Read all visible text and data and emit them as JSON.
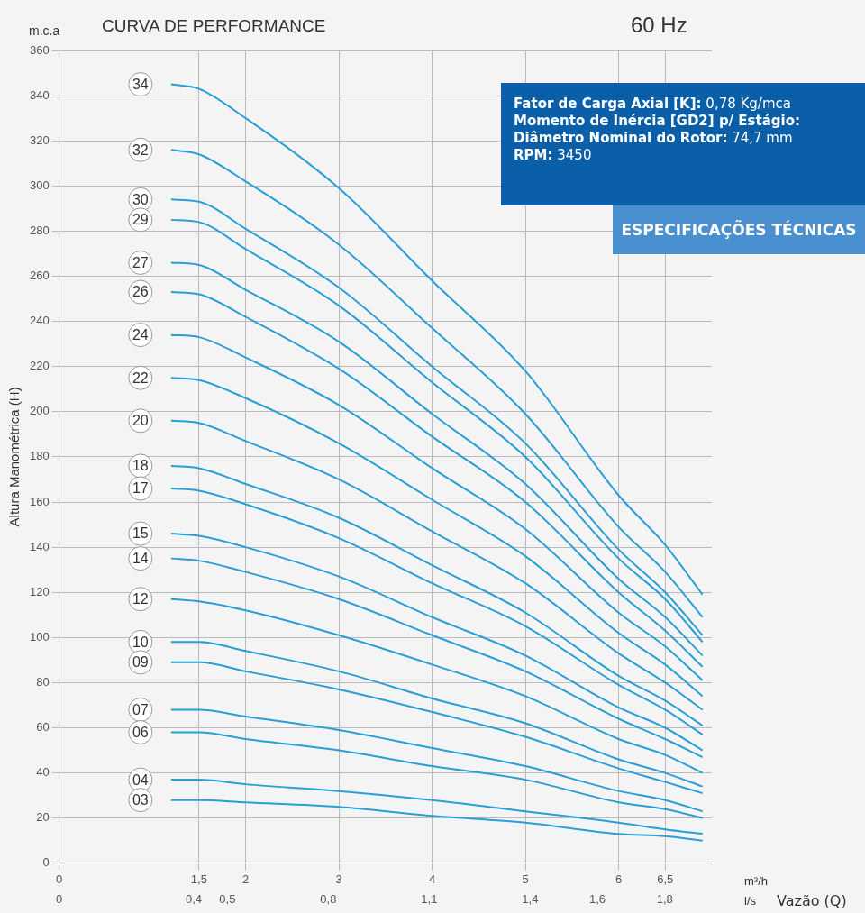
{
  "chart_data": {
    "type": "line",
    "title": "CURVA DE PERFORMANCE",
    "subtitle": "60 Hz",
    "xlabel": "Vazão (Q)",
    "ylabel": "Altura Manométrica (H)",
    "annotations": [
      "m.c.a",
      "m³/h",
      "l/s",
      "Fator de Carga Axial [K]: 0,78 Kg/mca",
      "Momento de Inércia [GD2] p/ Estágio:",
      "Diâmetro Nominal do Rotor: 74,7 mm",
      "RPM: 3450",
      "ESPECIFICAÇÕES TÉCNICAS"
    ],
    "x": [
      1.2,
      1.5,
      2,
      3,
      4,
      5,
      6,
      6.5,
      6.9
    ],
    "xlim": [
      0,
      7
    ],
    "xticks": [
      0,
      {
        "value": 1.5,
        "label": "1,5"
      },
      2,
      3,
      4,
      5,
      6,
      {
        "value": 6.5,
        "label": "6,5"
      }
    ],
    "x2lim": [
      0,
      1.94
    ],
    "x2ticks": [
      0,
      {
        "value": 0.4,
        "label": "0,4"
      },
      {
        "value": 0.5,
        "label": "0,5"
      },
      {
        "value": 0.8,
        "label": "0,8"
      },
      {
        "value": 1.1,
        "label": "1,1"
      },
      {
        "value": 1.4,
        "label": "1,4"
      },
      {
        "value": 1.6,
        "label": "1,6"
      },
      {
        "value": 1.8,
        "label": "1,8"
      }
    ],
    "ylim": [
      0,
      360
    ],
    "yticks": [
      0,
      20,
      40,
      60,
      80,
      100,
      120,
      140,
      160,
      180,
      200,
      220,
      240,
      260,
      280,
      300,
      320,
      340,
      360
    ],
    "grid": true,
    "legend": false,
    "marker": "none",
    "line_style": "solid",
    "series": [
      {
        "name": "34",
        "color": "#2a9fd6",
        "values": [
          345,
          343,
          330,
          299,
          258,
          218,
          163,
          141,
          119
        ]
      },
      {
        "name": "32",
        "color": "#2a9fd6",
        "values": [
          316,
          314,
          302,
          274,
          237,
          199,
          149,
          129,
          109
        ]
      },
      {
        "name": "30",
        "color": "#2a9fd6",
        "values": [
          294,
          293,
          281,
          255,
          220,
          186,
          139,
          120,
          101
        ]
      },
      {
        "name": "29",
        "color": "#2a9fd6",
        "values": [
          285,
          284,
          272,
          247,
          213,
          180,
          135,
          117,
          98
        ]
      },
      {
        "name": "27",
        "color": "#2a9fd6",
        "values": [
          266,
          265,
          254,
          231,
          199,
          168,
          126,
          109,
          92
        ]
      },
      {
        "name": "26",
        "color": "#2a9fd6",
        "values": [
          253,
          252,
          242,
          219,
          189,
          160,
          120,
          103,
          87
        ]
      },
      {
        "name": "24",
        "color": "#2a9fd6",
        "values": [
          234,
          233,
          224,
          203,
          175,
          148,
          111,
          96,
          81
        ]
      },
      {
        "name": "22",
        "color": "#2a9fd6",
        "values": [
          215,
          214,
          206,
          186,
          161,
          136,
          102,
          88,
          74
        ]
      },
      {
        "name": "20",
        "color": "#2a9fd6",
        "values": [
          196,
          195,
          187,
          170,
          147,
          124,
          93,
          80,
          68
        ]
      },
      {
        "name": "18",
        "color": "#2a9fd6",
        "values": [
          176,
          175,
          168,
          153,
          132,
          111,
          83,
          72,
          61
        ]
      },
      {
        "name": "17",
        "color": "#2a9fd6",
        "values": [
          166,
          165,
          159,
          144,
          124,
          105,
          79,
          68,
          57
        ]
      },
      {
        "name": "15",
        "color": "#2a9fd6",
        "values": [
          146,
          145,
          140,
          127,
          109,
          92,
          69,
          60,
          50
        ]
      },
      {
        "name": "14",
        "color": "#2a9fd6",
        "values": [
          135,
          134,
          129,
          117,
          101,
          85,
          64,
          55,
          47
        ]
      },
      {
        "name": "12",
        "color": "#2a9fd6",
        "values": [
          117,
          116,
          112,
          101,
          88,
          74,
          55,
          48,
          40
        ]
      },
      {
        "name": "10",
        "color": "#2a9fd6",
        "values": [
          98,
          98,
          94,
          85,
          73,
          62,
          46,
          40,
          34
        ]
      },
      {
        "name": "09",
        "color": "#2a9fd6",
        "values": [
          89,
          89,
          85,
          77,
          67,
          56,
          42,
          36,
          31
        ]
      },
      {
        "name": "07",
        "color": "#2a9fd6",
        "values": [
          68,
          68,
          65,
          59,
          51,
          43,
          32,
          28,
          23
        ]
      },
      {
        "name": "06",
        "color": "#2a9fd6",
        "values": [
          58,
          58,
          55,
          50,
          43,
          37,
          27,
          24,
          20
        ]
      },
      {
        "name": "04",
        "color": "#2a9fd6",
        "values": [
          37,
          37,
          35,
          32,
          28,
          23,
          18,
          15,
          13
        ]
      },
      {
        "name": "03",
        "color": "#2a9fd6",
        "values": [
          28,
          28,
          27,
          25,
          21,
          18,
          13,
          12,
          10
        ]
      }
    ]
  }
}
